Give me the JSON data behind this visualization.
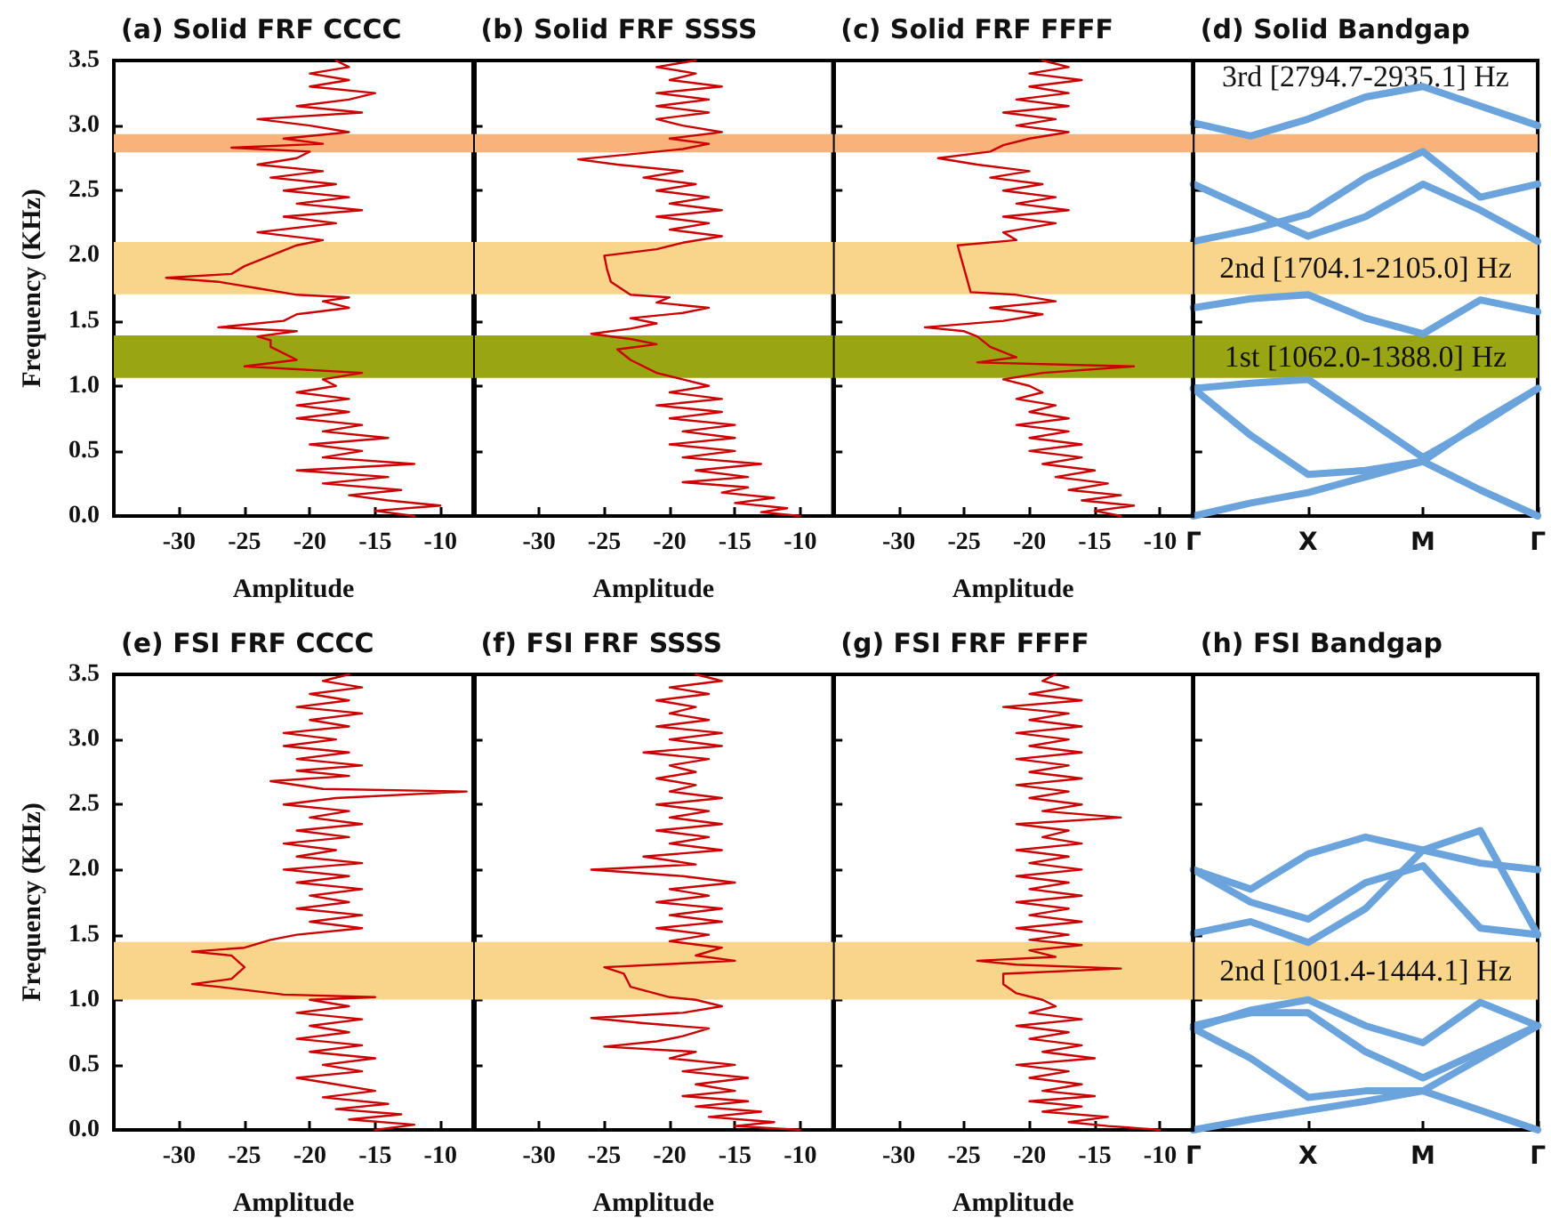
{
  "chart_data": [
    {
      "type": "line",
      "title": "(a) Solid FRF CCCC",
      "xlabel": "Amplitude",
      "ylabel": "Frequency (KHz)",
      "xlim": [
        -35,
        -7.5
      ],
      "xticks": [
        -30,
        -25,
        -20,
        -15,
        -10
      ],
      "ylim": [
        0,
        3.5
      ],
      "yticks": [
        {
          "value": 0,
          "label": "0.0"
        },
        0.5,
        {
          "value": 1,
          "label": "1.0"
        },
        1.5,
        {
          "value": 2,
          "label": "2.0"
        },
        2.5,
        {
          "value": 3,
          "label": "3.0"
        },
        3.5
      ],
      "bands": [
        {
          "axis": "y",
          "from": 1.062,
          "to": 1.388,
          "color": "#9aa514"
        },
        {
          "axis": "y",
          "from": 1.7041,
          "to": 2.105,
          "color": "#f9d58b"
        },
        {
          "axis": "y",
          "from": 2.7947,
          "to": 2.9351,
          "color": "#f9b27a"
        }
      ],
      "series": [
        {
          "color": "#cc0000",
          "x": [
            -12,
            -15,
            -10,
            -14,
            -17,
            -13,
            -19,
            -14,
            -21,
            -12,
            -19,
            -16,
            -20,
            -14,
            -19,
            -16,
            -21,
            -17,
            -21,
            -17,
            -21,
            -18,
            -19,
            -16,
            -25,
            -21,
            -22,
            -23,
            -23,
            -24,
            -21,
            -27,
            -22,
            -21,
            -17,
            -19,
            -17,
            -21,
            -24,
            -27,
            -31,
            -26,
            -25,
            -23,
            -21,
            -19,
            -24,
            -18,
            -22,
            -16,
            -21,
            -17,
            -22,
            -18,
            -23,
            -19,
            -24,
            -21,
            -20,
            -26,
            -19,
            -22,
            -17,
            -20,
            -24,
            -16,
            -21,
            -17,
            -15,
            -20,
            -17,
            -20,
            -17,
            -18
          ],
          "values": [
            0,
            0.04,
            0.08,
            0.12,
            0.16,
            0.2,
            0.25,
            0.3,
            0.35,
            0.4,
            0.45,
            0.5,
            0.55,
            0.6,
            0.65,
            0.7,
            0.75,
            0.8,
            0.85,
            0.9,
            0.95,
            1.0,
            1.05,
            1.1,
            1.15,
            1.2,
            1.25,
            1.3,
            1.35,
            1.38,
            1.42,
            1.45,
            1.5,
            1.55,
            1.6,
            1.65,
            1.68,
            1.7,
            1.75,
            1.8,
            1.83,
            1.86,
            1.92,
            2.0,
            2.08,
            2.12,
            2.18,
            2.25,
            2.3,
            2.35,
            2.4,
            2.45,
            2.5,
            2.55,
            2.6,
            2.65,
            2.7,
            2.75,
            2.8,
            2.83,
            2.86,
            2.9,
            2.95,
            3.0,
            3.05,
            3.1,
            3.15,
            3.2,
            3.25,
            3.3,
            3.35,
            3.4,
            3.45,
            3.5
          ]
        }
      ]
    },
    {
      "type": "line",
      "title": "(b) Solid FRF SSSS",
      "xlabel": "Amplitude",
      "xlim": [
        -35,
        -7.5
      ],
      "xticks": [
        -30,
        -25,
        -20,
        -15,
        -10
      ],
      "ylim": [
        0,
        3.5
      ],
      "yticks": [
        0,
        0.5,
        1,
        1.5,
        2,
        2.5,
        3,
        3.5
      ],
      "tick_labels": "x",
      "bands": [
        {
          "axis": "y",
          "from": 1.062,
          "to": 1.388,
          "color": "#9aa514"
        },
        {
          "axis": "y",
          "from": 1.7041,
          "to": 2.105,
          "color": "#f9d58b"
        },
        {
          "axis": "y",
          "from": 2.7947,
          "to": 2.9351,
          "color": "#f9b27a"
        }
      ],
      "series": [
        {
          "color": "#cc0000",
          "x": [
            -10,
            -13,
            -11,
            -15,
            -12,
            -16,
            -14,
            -19,
            -14,
            -18,
            -13,
            -19,
            -15,
            -20,
            -15,
            -19,
            -15,
            -20,
            -16,
            -21,
            -16,
            -20,
            -17,
            -19,
            -21,
            -23,
            -24,
            -21,
            -23,
            -26,
            -23,
            -21,
            -23,
            -19,
            -17,
            -21,
            -20,
            -23,
            -24.5,
            -24.8,
            -25,
            -21,
            -19,
            -16,
            -20,
            -17,
            -21,
            -16,
            -20,
            -17,
            -21,
            -18,
            -22,
            -19,
            -24,
            -27,
            -23,
            -19,
            -17,
            -20,
            -16,
            -19,
            -21,
            -17,
            -21,
            -17,
            -21,
            -16,
            -20,
            -18,
            -21,
            -18
          ],
          "values": [
            0,
            0.03,
            0.06,
            0.1,
            0.14,
            0.18,
            0.22,
            0.26,
            0.3,
            0.35,
            0.4,
            0.45,
            0.5,
            0.55,
            0.6,
            0.65,
            0.7,
            0.75,
            0.8,
            0.85,
            0.9,
            0.95,
            1.0,
            1.05,
            1.1,
            1.2,
            1.28,
            1.32,
            1.36,
            1.4,
            1.44,
            1.48,
            1.52,
            1.56,
            1.6,
            1.64,
            1.68,
            1.7,
            1.8,
            1.9,
            2.0,
            2.05,
            2.1,
            2.15,
            2.2,
            2.25,
            2.3,
            2.35,
            2.4,
            2.45,
            2.5,
            2.55,
            2.6,
            2.65,
            2.7,
            2.74,
            2.78,
            2.82,
            2.86,
            2.9,
            2.95,
            3.0,
            3.05,
            3.1,
            3.15,
            3.2,
            3.25,
            3.3,
            3.35,
            3.4,
            3.45,
            3.5
          ]
        }
      ]
    },
    {
      "type": "line",
      "title": "(c) Solid FRF FFFF",
      "xlabel": "Amplitude",
      "xlim": [
        -35,
        -7.5
      ],
      "xticks": [
        -30,
        -25,
        -20,
        -15,
        -10
      ],
      "ylim": [
        0,
        3.5
      ],
      "yticks": [
        0,
        0.5,
        1,
        1.5,
        2,
        2.5,
        3,
        3.5
      ],
      "tick_labels": "x",
      "bands": [
        {
          "axis": "y",
          "from": 1.062,
          "to": 1.388,
          "color": "#9aa514"
        },
        {
          "axis": "y",
          "from": 1.7041,
          "to": 2.105,
          "color": "#f9d58b"
        },
        {
          "axis": "y",
          "from": 2.7947,
          "to": 2.9351,
          "color": "#f9b27a"
        }
      ],
      "series": [
        {
          "color": "#cc0000",
          "x": [
            -13,
            -15,
            -12,
            -16,
            -13,
            -17,
            -14,
            -18,
            -15,
            -19,
            -16,
            -20,
            -16,
            -20,
            -17,
            -21,
            -17,
            -20,
            -18,
            -21,
            -19,
            -20,
            -22,
            -19,
            -12,
            -24,
            -21,
            -23,
            -24,
            -25,
            -28,
            -22,
            -19,
            -23,
            -18,
            -21,
            -24.5,
            -25,
            -25.5,
            -21,
            -22,
            -18,
            -22,
            -17,
            -21,
            -18,
            -22,
            -19,
            -23,
            -20,
            -24,
            -27,
            -23,
            -22,
            -20,
            -17,
            -21,
            -18,
            -22,
            -17,
            -21,
            -17,
            -20,
            -16,
            -20,
            -17,
            -19
          ],
          "values": [
            0,
            0.04,
            0.08,
            0.12,
            0.16,
            0.2,
            0.25,
            0.3,
            0.35,
            0.4,
            0.45,
            0.5,
            0.55,
            0.6,
            0.65,
            0.7,
            0.75,
            0.8,
            0.85,
            0.9,
            0.95,
            1.0,
            1.05,
            1.1,
            1.15,
            1.18,
            1.22,
            1.3,
            1.38,
            1.42,
            1.45,
            1.5,
            1.55,
            1.6,
            1.65,
            1.7,
            1.72,
            1.9,
            2.08,
            2.12,
            2.18,
            2.25,
            2.3,
            2.35,
            2.4,
            2.45,
            2.5,
            2.55,
            2.6,
            2.65,
            2.7,
            2.75,
            2.8,
            2.85,
            2.9,
            2.95,
            3.0,
            3.05,
            3.1,
            3.15,
            3.2,
            3.25,
            3.3,
            3.35,
            3.4,
            3.45,
            3.5
          ]
        }
      ]
    },
    {
      "type": "line",
      "title": "(d) Solid Bandgap",
      "categories": [
        "Γ",
        null,
        "X",
        null,
        "M",
        null,
        "Γ"
      ],
      "ylim": [
        0,
        3.5
      ],
      "yticks": [
        0,
        0.5,
        1,
        1.5,
        2,
        2.5,
        3,
        3.5
      ],
      "tick_labels": "x",
      "bands": [
        {
          "axis": "y",
          "from": 1.062,
          "to": 1.388,
          "color": "#9aa514",
          "label": "1st [1062.0-1388.0] Hz"
        },
        {
          "axis": "y",
          "from": 1.7041,
          "to": 2.105,
          "color": "#f9d58b",
          "label": "2nd [1704.1-2105.0] Hz"
        },
        {
          "axis": "y",
          "from": 2.7947,
          "to": 2.9351,
          "color": "#f9b27a",
          "label": "3rd [2794.7-2935.1] Hz"
        }
      ],
      "series": [
        {
          "color": "#6ba3dc",
          "values": [
            0,
            0.1,
            0.18,
            0.3,
            0.42,
            0.72,
            0.98
          ]
        },
        {
          "color": "#6ba3dc",
          "values": [
            0.98,
            0.62,
            0.32,
            0.35,
            0.42,
            0.2,
            0
          ]
        },
        {
          "color": "#6ba3dc",
          "values": [
            0.98,
            1.02,
            1.05,
            0.75,
            0.45,
            0.7,
            0.98
          ]
        },
        {
          "color": "#6ba3dc",
          "values": [
            1.6,
            1.67,
            1.7,
            1.52,
            1.4,
            1.66,
            1.57
          ]
        },
        {
          "color": "#6ba3dc",
          "values": [
            2.55,
            2.35,
            2.15,
            2.3,
            2.55,
            2.35,
            2.11
          ]
        },
        {
          "color": "#6ba3dc",
          "values": [
            2.11,
            2.2,
            2.32,
            2.6,
            2.8,
            2.45,
            2.55
          ]
        },
        {
          "color": "#6ba3dc",
          "values": [
            3.02,
            2.92,
            3.05,
            3.22,
            3.3,
            3.15,
            3.0
          ]
        }
      ]
    },
    {
      "type": "line",
      "title": "(e) FSI FRF CCCC",
      "xlabel": "Amplitude",
      "ylabel": "Frequency (KHz)",
      "xlim": [
        -35,
        -7.5
      ],
      "xticks": [
        -30,
        -25,
        -20,
        -15,
        -10
      ],
      "ylim": [
        0,
        3.5
      ],
      "yticks": [
        {
          "value": 0,
          "label": "0.0"
        },
        0.5,
        {
          "value": 1,
          "label": "1.0"
        },
        1.5,
        {
          "value": 2,
          "label": "2.0"
        },
        2.5,
        {
          "value": 3,
          "label": "3.0"
        },
        3.5
      ],
      "bands": [
        {
          "axis": "y",
          "from": 1.0014,
          "to": 1.4441,
          "color": "#f9d58b"
        }
      ],
      "series": [
        {
          "color": "#cc0000",
          "x": [
            -15,
            -12,
            -17,
            -13,
            -18,
            -14,
            -19,
            -15,
            -18,
            -21,
            -16,
            -19,
            -15,
            -20,
            -16,
            -21,
            -17,
            -20,
            -16,
            -21,
            -17,
            -20,
            -15,
            -22,
            -27,
            -29,
            -26,
            -25,
            -26,
            -29,
            -25,
            -23,
            -21,
            -16,
            -20,
            -16,
            -21,
            -17,
            -20,
            -16,
            -21,
            -17,
            -22,
            -16,
            -21,
            -18,
            -22,
            -17,
            -21,
            -16,
            -20,
            -17,
            -22,
            -18,
            -8,
            -19,
            -23,
            -17,
            -21,
            -16,
            -21,
            -17,
            -22,
            -18,
            -22,
            -17,
            -20,
            -16,
            -21,
            -17,
            -20,
            -16,
            -19,
            -17
          ],
          "values": [
            0,
            0.04,
            0.08,
            0.12,
            0.16,
            0.2,
            0.25,
            0.3,
            0.35,
            0.4,
            0.45,
            0.5,
            0.55,
            0.6,
            0.65,
            0.7,
            0.75,
            0.8,
            0.85,
            0.9,
            0.95,
            1.0,
            1.02,
            1.04,
            1.1,
            1.12,
            1.16,
            1.25,
            1.34,
            1.37,
            1.4,
            1.46,
            1.5,
            1.55,
            1.6,
            1.65,
            1.7,
            1.75,
            1.8,
            1.85,
            1.9,
            1.95,
            2.0,
            2.05,
            2.1,
            2.15,
            2.2,
            2.25,
            2.3,
            2.35,
            2.4,
            2.45,
            2.5,
            2.55,
            2.6,
            2.62,
            2.68,
            2.72,
            2.76,
            2.8,
            2.85,
            2.9,
            2.95,
            3.0,
            3.05,
            3.1,
            3.15,
            3.2,
            3.25,
            3.3,
            3.35,
            3.4,
            3.45,
            3.5
          ]
        }
      ]
    },
    {
      "type": "line",
      "title": "(f) FSI FRF SSSS",
      "xlabel": "Amplitude",
      "xlim": [
        -35,
        -7.5
      ],
      "xticks": [
        -30,
        -25,
        -20,
        -15,
        -10
      ],
      "ylim": [
        0,
        3.5
      ],
      "yticks": [
        0,
        0.5,
        1,
        1.5,
        2,
        2.5,
        3,
        3.5
      ],
      "tick_labels": "x",
      "bands": [
        {
          "axis": "y",
          "from": 1.0014,
          "to": 1.4441,
          "color": "#f9d58b"
        }
      ],
      "series": [
        {
          "color": "#cc0000",
          "x": [
            -10,
            -15,
            -12,
            -17,
            -13,
            -18,
            -14,
            -19,
            -15,
            -18,
            -14,
            -19,
            -15,
            -20,
            -18,
            -25,
            -21,
            -19,
            -17,
            -22,
            -26,
            -19,
            -16,
            -18,
            -20,
            -23,
            -23.5,
            -25,
            -19,
            -15,
            -18,
            -16,
            -20,
            -17,
            -21,
            -16,
            -20,
            -16,
            -21,
            -17,
            -20,
            -15,
            -19,
            -26,
            -18,
            -22,
            -16,
            -20,
            -17,
            -21,
            -16,
            -20,
            -17,
            -21,
            -16,
            -20,
            -18,
            -21,
            -18,
            -20,
            -17,
            -22,
            -16,
            -20,
            -16,
            -21,
            -17,
            -20,
            -18,
            -21,
            -17,
            -20,
            -16,
            -18
          ],
          "values": [
            0,
            0.03,
            0.06,
            0.1,
            0.14,
            0.18,
            0.22,
            0.26,
            0.3,
            0.35,
            0.4,
            0.45,
            0.5,
            0.55,
            0.6,
            0.64,
            0.68,
            0.72,
            0.78,
            0.82,
            0.86,
            0.9,
            0.95,
            1.0,
            1.02,
            1.1,
            1.2,
            1.25,
            1.28,
            1.3,
            1.34,
            1.4,
            1.45,
            1.5,
            1.55,
            1.6,
            1.65,
            1.7,
            1.75,
            1.8,
            1.85,
            1.9,
            1.95,
            2.0,
            2.04,
            2.1,
            2.15,
            2.2,
            2.25,
            2.3,
            2.35,
            2.4,
            2.45,
            2.5,
            2.55,
            2.6,
            2.65,
            2.7,
            2.75,
            2.8,
            2.85,
            2.9,
            2.95,
            3.0,
            3.05,
            3.1,
            3.15,
            3.2,
            3.25,
            3.3,
            3.35,
            3.4,
            3.45,
            3.5
          ]
        }
      ]
    },
    {
      "type": "line",
      "title": "(g) FSI FRF FFFF",
      "xlabel": "Amplitude",
      "xlim": [
        -35,
        -7.5
      ],
      "xticks": [
        -30,
        -25,
        -20,
        -15,
        -10
      ],
      "ylim": [
        0,
        3.5
      ],
      "yticks": [
        0,
        0.5,
        1,
        1.5,
        2,
        2.5,
        3,
        3.5
      ],
      "tick_labels": "x",
      "bands": [
        {
          "axis": "y",
          "from": 1.0014,
          "to": 1.4441,
          "color": "#f9d58b"
        }
      ],
      "series": [
        {
          "color": "#cc0000",
          "x": [
            -10,
            -14,
            -17,
            -14,
            -19,
            -16,
            -20,
            -15,
            -19,
            -16,
            -20,
            -17,
            -21,
            -15,
            -19,
            -16,
            -20,
            -17,
            -21,
            -16,
            -20,
            -18,
            -19,
            -21,
            -22,
            -22,
            -13,
            -21,
            -24,
            -18,
            -20,
            -16,
            -20,
            -17,
            -21,
            -16,
            -20,
            -17,
            -21,
            -16,
            -20,
            -17,
            -21,
            -16,
            -20,
            -17,
            -21,
            -16,
            -19,
            -17,
            -21,
            -13,
            -19,
            -16,
            -20,
            -17,
            -21,
            -16,
            -20,
            -17,
            -21,
            -16,
            -20,
            -17,
            -21,
            -16,
            -20,
            -17,
            -22,
            -16,
            -20,
            -17,
            -19,
            -18
          ],
          "values": [
            0,
            0.03,
            0.06,
            0.1,
            0.14,
            0.18,
            0.22,
            0.26,
            0.3,
            0.35,
            0.4,
            0.45,
            0.5,
            0.55,
            0.6,
            0.65,
            0.7,
            0.75,
            0.8,
            0.85,
            0.9,
            0.95,
            1.0,
            1.05,
            1.12,
            1.2,
            1.24,
            1.27,
            1.3,
            1.33,
            1.38,
            1.42,
            1.46,
            1.5,
            1.55,
            1.6,
            1.65,
            1.7,
            1.75,
            1.8,
            1.85,
            1.9,
            1.95,
            2.0,
            2.05,
            2.1,
            2.15,
            2.2,
            2.25,
            2.3,
            2.35,
            2.4,
            2.45,
            2.5,
            2.55,
            2.6,
            2.65,
            2.7,
            2.75,
            2.8,
            2.85,
            2.9,
            2.95,
            3.0,
            3.05,
            3.1,
            3.15,
            3.2,
            3.25,
            3.3,
            3.35,
            3.4,
            3.45,
            3.5
          ]
        }
      ]
    },
    {
      "type": "line",
      "title": "(h) FSI Bandgap",
      "categories": [
        "Γ",
        null,
        "X",
        null,
        "M",
        null,
        "Γ"
      ],
      "ylim": [
        0,
        3.5
      ],
      "yticks": [
        0,
        0.5,
        1,
        1.5,
        2,
        2.5,
        3,
        3.5
      ],
      "tick_labels": "x",
      "bands": [
        {
          "axis": "y",
          "from": 1.0014,
          "to": 1.4441,
          "color": "#f9d58b",
          "label": "2nd [1001.4-1444.1] Hz"
        }
      ],
      "series": [
        {
          "color": "#6ba3dc",
          "values": [
            2.0,
            1.85,
            2.12,
            2.25,
            2.15,
            2.05,
            2.0
          ]
        },
        {
          "color": "#6ba3dc",
          "values": [
            2.0,
            1.75,
            1.62,
            1.9,
            2.03,
            1.55,
            1.5
          ]
        },
        {
          "color": "#6ba3dc",
          "values": [
            1.51,
            1.6,
            1.44,
            1.7,
            2.15,
            2.3,
            1.5
          ]
        },
        {
          "color": "#6ba3dc",
          "values": [
            0.78,
            0.92,
            1.0,
            0.8,
            0.67,
            0.98,
            0.8
          ]
        },
        {
          "color": "#6ba3dc",
          "values": [
            0.78,
            0.55,
            0.25,
            0.3,
            0.3,
            0.15,
            0
          ]
        },
        {
          "color": "#6ba3dc",
          "values": [
            0,
            0.08,
            0.15,
            0.22,
            0.3,
            0.55,
            0.8
          ]
        },
        {
          "color": "#6ba3dc",
          "values": [
            0.8,
            0.9,
            0.9,
            0.6,
            0.4,
            0.6,
            0.8
          ]
        }
      ]
    }
  ]
}
